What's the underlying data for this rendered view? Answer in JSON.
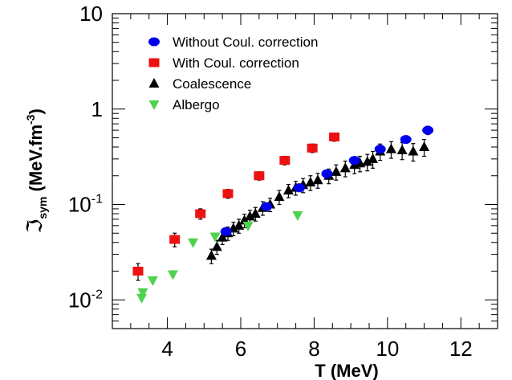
{
  "chart_data": {
    "type": "scatter",
    "title": "",
    "xlabel": "T (MeV)",
    "ylabel": {
      "symbol": "ℑ",
      "subscript": "sym",
      "unit_main": " (MeV.fm",
      "unit_exp": "-3",
      "unit_close": ")"
    },
    "xlim": [
      2.5,
      13
    ],
    "ylim": [
      0.005,
      10
    ],
    "yscale": "log",
    "x_ticks": [
      "4",
      "6",
      "8",
      "10",
      "12"
    ],
    "y_ticks": [
      {
        "base": "10",
        "exp": "-2"
      },
      {
        "base": "10",
        "exp": "-1"
      },
      {
        "base": "1",
        "exp": ""
      },
      {
        "base": "10",
        "exp": ""
      }
    ],
    "grid": false,
    "legend_position": "top-left",
    "series": [
      {
        "name": "Without Coul. correction",
        "marker": "circle",
        "color": "#0000ee",
        "points": [
          {
            "x": 5.6,
            "y": 0.052,
            "err": 0.005
          },
          {
            "x": 6.7,
            "y": 0.095,
            "err": 0.009
          },
          {
            "x": 7.6,
            "y": 0.15,
            "err": 0.014
          },
          {
            "x": 8.35,
            "y": 0.21,
            "err": 0.018
          },
          {
            "x": 9.1,
            "y": 0.29,
            "err": 0.025
          },
          {
            "x": 9.8,
            "y": 0.38,
            "err": 0.03
          },
          {
            "x": 10.5,
            "y": 0.48,
            "err": 0.04
          },
          {
            "x": 11.1,
            "y": 0.6,
            "err": 0.06
          }
        ]
      },
      {
        "name": "With Coul. correction",
        "marker": "square",
        "color": "#ee1111",
        "points": [
          {
            "x": 3.2,
            "y": 0.02,
            "err": 0.004
          },
          {
            "x": 4.2,
            "y": 0.043,
            "err": 0.007
          },
          {
            "x": 4.9,
            "y": 0.08,
            "err": 0.01
          },
          {
            "x": 5.65,
            "y": 0.13,
            "err": 0.014
          },
          {
            "x": 6.5,
            "y": 0.2,
            "err": 0.02
          },
          {
            "x": 7.2,
            "y": 0.29,
            "err": 0.03
          },
          {
            "x": 7.95,
            "y": 0.39,
            "err": 0.04
          },
          {
            "x": 8.55,
            "y": 0.51,
            "err": 0.05
          }
        ]
      },
      {
        "name": "Coalescence",
        "marker": "triangle-up",
        "color": "#000000",
        "points": [
          {
            "x": 5.2,
            "y": 0.029,
            "err": 0.005
          },
          {
            "x": 5.35,
            "y": 0.036,
            "err": 0.006
          },
          {
            "x": 5.5,
            "y": 0.045,
            "err": 0.007
          },
          {
            "x": 5.65,
            "y": 0.05,
            "err": 0.008
          },
          {
            "x": 5.8,
            "y": 0.056,
            "err": 0.009
          },
          {
            "x": 5.95,
            "y": 0.06,
            "err": 0.01
          },
          {
            "x": 6.1,
            "y": 0.068,
            "err": 0.011
          },
          {
            "x": 6.25,
            "y": 0.075,
            "err": 0.012
          },
          {
            "x": 6.4,
            "y": 0.08,
            "err": 0.013
          },
          {
            "x": 6.6,
            "y": 0.092,
            "err": 0.015
          },
          {
            "x": 6.8,
            "y": 0.1,
            "err": 0.016
          },
          {
            "x": 7.05,
            "y": 0.12,
            "err": 0.02
          },
          {
            "x": 7.3,
            "y": 0.14,
            "err": 0.022
          },
          {
            "x": 7.5,
            "y": 0.15,
            "err": 0.025
          },
          {
            "x": 7.7,
            "y": 0.16,
            "err": 0.027
          },
          {
            "x": 7.9,
            "y": 0.17,
            "err": 0.03
          },
          {
            "x": 8.1,
            "y": 0.18,
            "err": 0.032
          },
          {
            "x": 8.4,
            "y": 0.2,
            "err": 0.035
          },
          {
            "x": 8.6,
            "y": 0.22,
            "err": 0.04
          },
          {
            "x": 8.85,
            "y": 0.24,
            "err": 0.045
          },
          {
            "x": 9.1,
            "y": 0.26,
            "err": 0.05
          },
          {
            "x": 9.25,
            "y": 0.27,
            "err": 0.05
          },
          {
            "x": 9.45,
            "y": 0.28,
            "err": 0.055
          },
          {
            "x": 9.6,
            "y": 0.3,
            "err": 0.06
          },
          {
            "x": 9.8,
            "y": 0.36,
            "err": 0.07
          },
          {
            "x": 10.1,
            "y": 0.38,
            "err": 0.075
          },
          {
            "x": 10.4,
            "y": 0.37,
            "err": 0.075
          },
          {
            "x": 10.7,
            "y": 0.36,
            "err": 0.075
          },
          {
            "x": 11.0,
            "y": 0.4,
            "err": 0.08
          }
        ]
      },
      {
        "name": "Albergo",
        "marker": "triangle-down",
        "color": "#4dd24d",
        "points": [
          {
            "x": 3.3,
            "y": 0.0105
          },
          {
            "x": 3.33,
            "y": 0.012
          },
          {
            "x": 3.6,
            "y": 0.016
          },
          {
            "x": 4.15,
            "y": 0.0185
          },
          {
            "x": 4.7,
            "y": 0.04
          },
          {
            "x": 5.3,
            "y": 0.046
          },
          {
            "x": 6.2,
            "y": 0.06
          },
          {
            "x": 7.55,
            "y": 0.077
          }
        ]
      }
    ]
  }
}
